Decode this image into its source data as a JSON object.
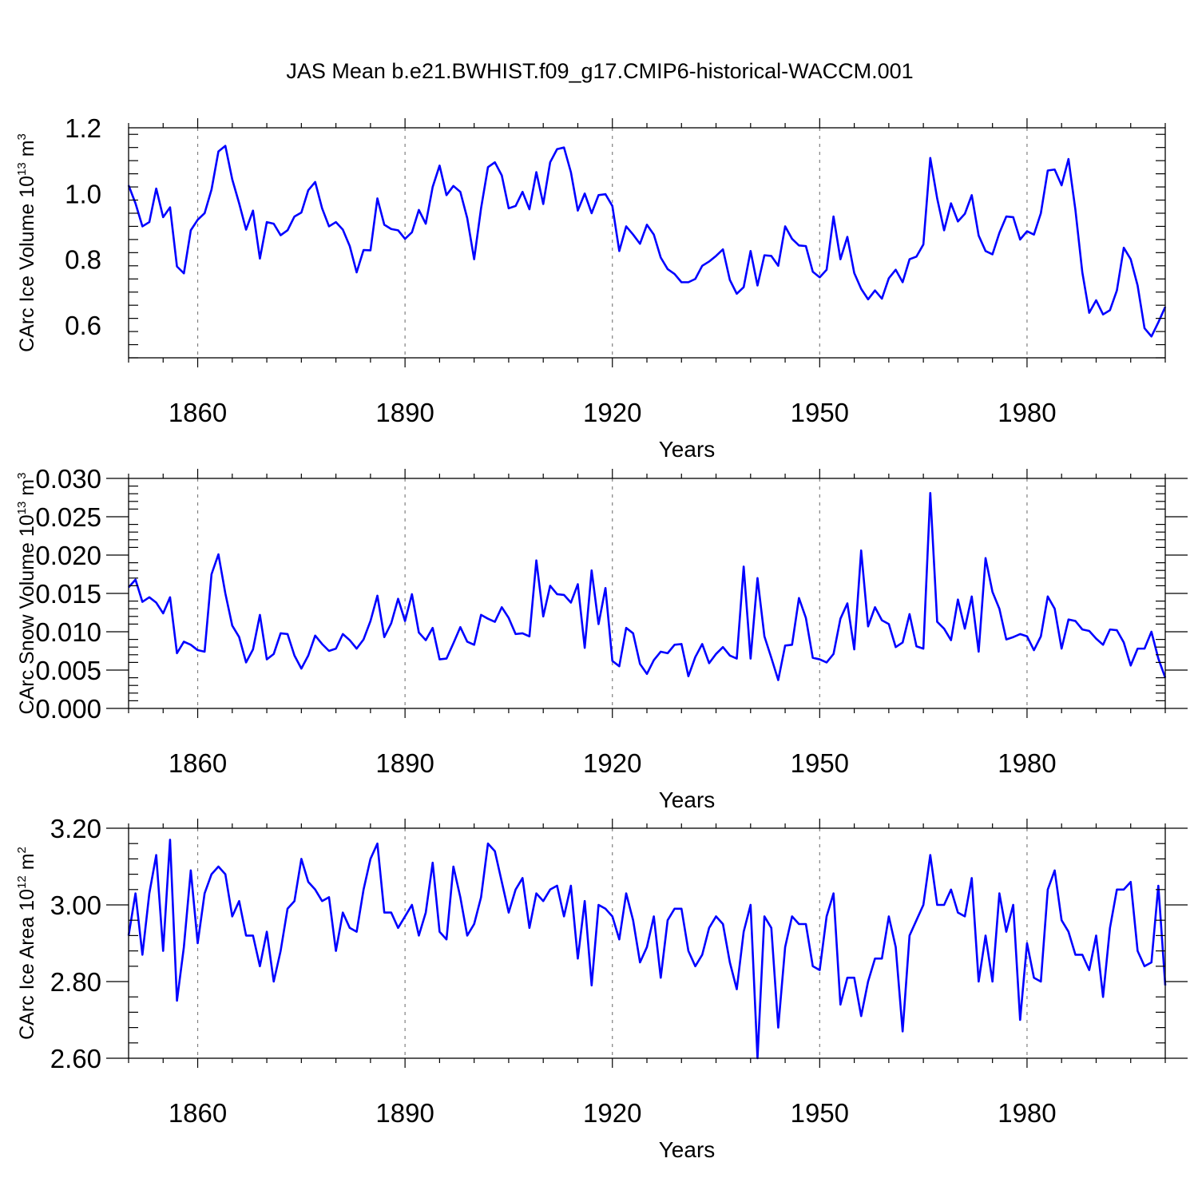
{
  "title": "JAS Mean b.e21.BWHIST.f09_g17.CMIP6-historical-WACCM.001",
  "colors": {
    "line": "#0000ff",
    "axis": "#000000",
    "grid": "#808080"
  },
  "chart_data": [
    {
      "type": "line",
      "name": "ice-volume",
      "ylabel": {
        "text": "CArc Ice Volume 10",
        "exp": "13",
        "unit": " m",
        "unit_exp": "3"
      },
      "xlabel": "Years",
      "xlim": [
        1850,
        2000
      ],
      "ylim": [
        0.5,
        1.2
      ],
      "yticks": [
        0.6,
        0.8,
        1.0,
        1.2
      ],
      "ytick_labels": [
        "0.6",
        "0.8",
        "1.0",
        "1.2"
      ],
      "xticks": [
        1860,
        1890,
        1920,
        1950,
        1980
      ],
      "xtick_labels": [
        "1860",
        "1890",
        "1920",
        "1950",
        "1980"
      ],
      "x_start": 1850,
      "values": [
        1.025,
        0.97,
        0.9,
        0.913,
        1.015,
        0.928,
        0.958,
        0.778,
        0.757,
        0.888,
        0.92,
        0.94,
        1.012,
        1.128,
        1.145,
        1.043,
        0.97,
        0.89,
        0.948,
        0.802,
        0.913,
        0.908,
        0.873,
        0.888,
        0.93,
        0.942,
        1.01,
        1.035,
        0.955,
        0.9,
        0.913,
        0.89,
        0.84,
        0.76,
        0.828,
        0.827,
        0.985,
        0.905,
        0.892,
        0.888,
        0.862,
        0.882,
        0.95,
        0.908,
        1.02,
        1.085,
        0.995,
        1.023,
        1.005,
        0.925,
        0.8,
        0.955,
        1.08,
        1.095,
        1.055,
        0.955,
        0.962,
        1.005,
        0.952,
        1.065,
        0.968,
        1.095,
        1.135,
        1.14,
        1.065,
        0.948,
        1.0,
        0.94,
        0.995,
        0.998,
        0.962,
        0.825,
        0.9,
        0.875,
        0.847,
        0.905,
        0.875,
        0.805,
        0.77,
        0.755,
        0.73,
        0.73,
        0.74,
        0.78,
        0.793,
        0.81,
        0.83,
        0.737,
        0.695,
        0.715,
        0.825,
        0.72,
        0.812,
        0.81,
        0.78,
        0.9,
        0.862,
        0.842,
        0.84,
        0.762,
        0.745,
        0.768,
        0.93,
        0.8,
        0.868,
        0.758,
        0.71,
        0.678,
        0.705,
        0.68,
        0.742,
        0.768,
        0.73,
        0.8,
        0.808,
        0.845,
        1.108,
        0.985,
        0.888,
        0.97,
        0.915,
        0.938,
        0.995,
        0.872,
        0.825,
        0.815,
        0.88,
        0.93,
        0.928,
        0.86,
        0.885,
        0.875,
        0.94,
        1.07,
        1.073,
        1.025,
        1.105,
        0.95,
        0.76,
        0.637,
        0.675,
        0.632,
        0.645,
        0.705,
        0.835,
        0.8,
        0.72,
        0.59,
        0.565,
        0.608,
        0.655
      ]
    },
    {
      "type": "line",
      "name": "snow-volume",
      "ylabel": {
        "text": "CArc Snow Volume 10",
        "exp": "13",
        "unit": " m",
        "unit_exp": "3"
      },
      "xlabel": "Years",
      "xlim": [
        1850,
        2000
      ],
      "ylim": [
        0.0,
        0.03
      ],
      "yticks": [
        0.0,
        0.005,
        0.01,
        0.015,
        0.02,
        0.025,
        0.03
      ],
      "ytick_labels": [
        "0.000",
        "0.005",
        "0.010",
        "0.015",
        "0.020",
        "0.025",
        "0.030"
      ],
      "xticks": [
        1860,
        1890,
        1920,
        1950,
        1980
      ],
      "xtick_labels": [
        "1860",
        "1890",
        "1920",
        "1950",
        "1980"
      ],
      "x_start": 1850,
      "values": [
        0.0158,
        0.0168,
        0.0139,
        0.0145,
        0.0138,
        0.0124,
        0.0145,
        0.0072,
        0.0087,
        0.0083,
        0.0076,
        0.0074,
        0.0175,
        0.0201,
        0.015,
        0.0108,
        0.0093,
        0.006,
        0.0077,
        0.0122,
        0.0064,
        0.0071,
        0.0098,
        0.0097,
        0.0069,
        0.0052,
        0.0069,
        0.0095,
        0.0084,
        0.0075,
        0.0078,
        0.0097,
        0.0089,
        0.0078,
        0.009,
        0.0114,
        0.0147,
        0.0093,
        0.0111,
        0.0143,
        0.0114,
        0.0149,
        0.0099,
        0.0089,
        0.0105,
        0.0064,
        0.0065,
        0.0085,
        0.0106,
        0.0087,
        0.0083,
        0.0122,
        0.0117,
        0.0113,
        0.0132,
        0.0118,
        0.0097,
        0.0098,
        0.0094,
        0.0193,
        0.012,
        0.016,
        0.0149,
        0.0148,
        0.0138,
        0.0162,
        0.0079,
        0.018,
        0.011,
        0.0157,
        0.0062,
        0.0055,
        0.0105,
        0.0098,
        0.0058,
        0.0045,
        0.0063,
        0.0074,
        0.0072,
        0.0083,
        0.0084,
        0.0042,
        0.0067,
        0.0084,
        0.0059,
        0.0071,
        0.008,
        0.0069,
        0.0065,
        0.0185,
        0.0065,
        0.017,
        0.0094,
        0.0066,
        0.0037,
        0.0082,
        0.0083,
        0.0144,
        0.0118,
        0.0066,
        0.0064,
        0.006,
        0.0071,
        0.0117,
        0.0137,
        0.0077,
        0.0206,
        0.0107,
        0.0132,
        0.0115,
        0.011,
        0.008,
        0.0086,
        0.0123,
        0.0081,
        0.0078,
        0.0281,
        0.0113,
        0.0104,
        0.0089,
        0.0142,
        0.0104,
        0.0146,
        0.0074,
        0.0196,
        0.0152,
        0.013,
        0.009,
        0.0093,
        0.0097,
        0.0094,
        0.0076,
        0.0094,
        0.0146,
        0.013,
        0.0078,
        0.0116,
        0.0114,
        0.0103,
        0.0101,
        0.0091,
        0.0083,
        0.0103,
        0.0102,
        0.0086,
        0.0056,
        0.0078,
        0.0078,
        0.01,
        0.0065,
        0.004
      ]
    },
    {
      "type": "line",
      "name": "ice-area",
      "ylabel": {
        "text": "CArc Ice Area 10",
        "exp": "12",
        "unit": " m",
        "unit_exp": "2"
      },
      "xlabel": "Years",
      "xlim": [
        1850,
        2000
      ],
      "ylim": [
        2.6,
        3.2
      ],
      "yticks": [
        2.6,
        2.8,
        3.0,
        3.2
      ],
      "ytick_labels": [
        "2.60",
        "2.80",
        "3.00",
        "3.20"
      ],
      "xticks": [
        1860,
        1890,
        1920,
        1950,
        1980
      ],
      "xtick_labels": [
        "1860",
        "1890",
        "1920",
        "1950",
        "1980"
      ],
      "x_start": 1850,
      "values": [
        2.92,
        3.03,
        2.87,
        3.03,
        3.13,
        2.88,
        3.17,
        2.75,
        2.89,
        3.09,
        2.9,
        3.03,
        3.08,
        3.1,
        3.08,
        2.97,
        3.01,
        2.92,
        2.92,
        2.84,
        2.93,
        2.8,
        2.88,
        2.99,
        3.01,
        3.12,
        3.06,
        3.04,
        3.01,
        3.02,
        2.88,
        2.98,
        2.94,
        2.93,
        3.04,
        3.12,
        3.16,
        2.98,
        2.98,
        2.94,
        2.97,
        3.0,
        2.92,
        2.98,
        3.11,
        2.93,
        2.91,
        3.1,
        3.02,
        2.92,
        2.95,
        3.02,
        3.16,
        3.14,
        3.06,
        2.98,
        3.04,
        3.07,
        2.94,
        3.03,
        3.01,
        3.04,
        3.05,
        2.97,
        3.05,
        2.86,
        3.01,
        2.79,
        3.0,
        2.99,
        2.97,
        2.91,
        3.03,
        2.96,
        2.85,
        2.89,
        2.97,
        2.81,
        2.96,
        2.99,
        2.99,
        2.88,
        2.84,
        2.87,
        2.94,
        2.97,
        2.95,
        2.85,
        2.78,
        2.93,
        3.0,
        2.6,
        2.97,
        2.94,
        2.68,
        2.89,
        2.97,
        2.95,
        2.95,
        2.84,
        2.83,
        2.97,
        3.03,
        2.74,
        2.81,
        2.81,
        2.71,
        2.8,
        2.86,
        2.86,
        2.97,
        2.89,
        2.67,
        2.92,
        2.96,
        3.0,
        3.13,
        3.0,
        3.0,
        3.04,
        2.98,
        2.97,
        3.07,
        2.8,
        2.92,
        2.8,
        3.03,
        2.93,
        3.0,
        2.7,
        2.9,
        2.81,
        2.8,
        3.04,
        3.09,
        2.96,
        2.93,
        2.87,
        2.87,
        2.83,
        2.92,
        2.76,
        2.94,
        3.04,
        3.04,
        3.06,
        2.88,
        2.84,
        2.85,
        3.05,
        2.79
      ]
    }
  ]
}
